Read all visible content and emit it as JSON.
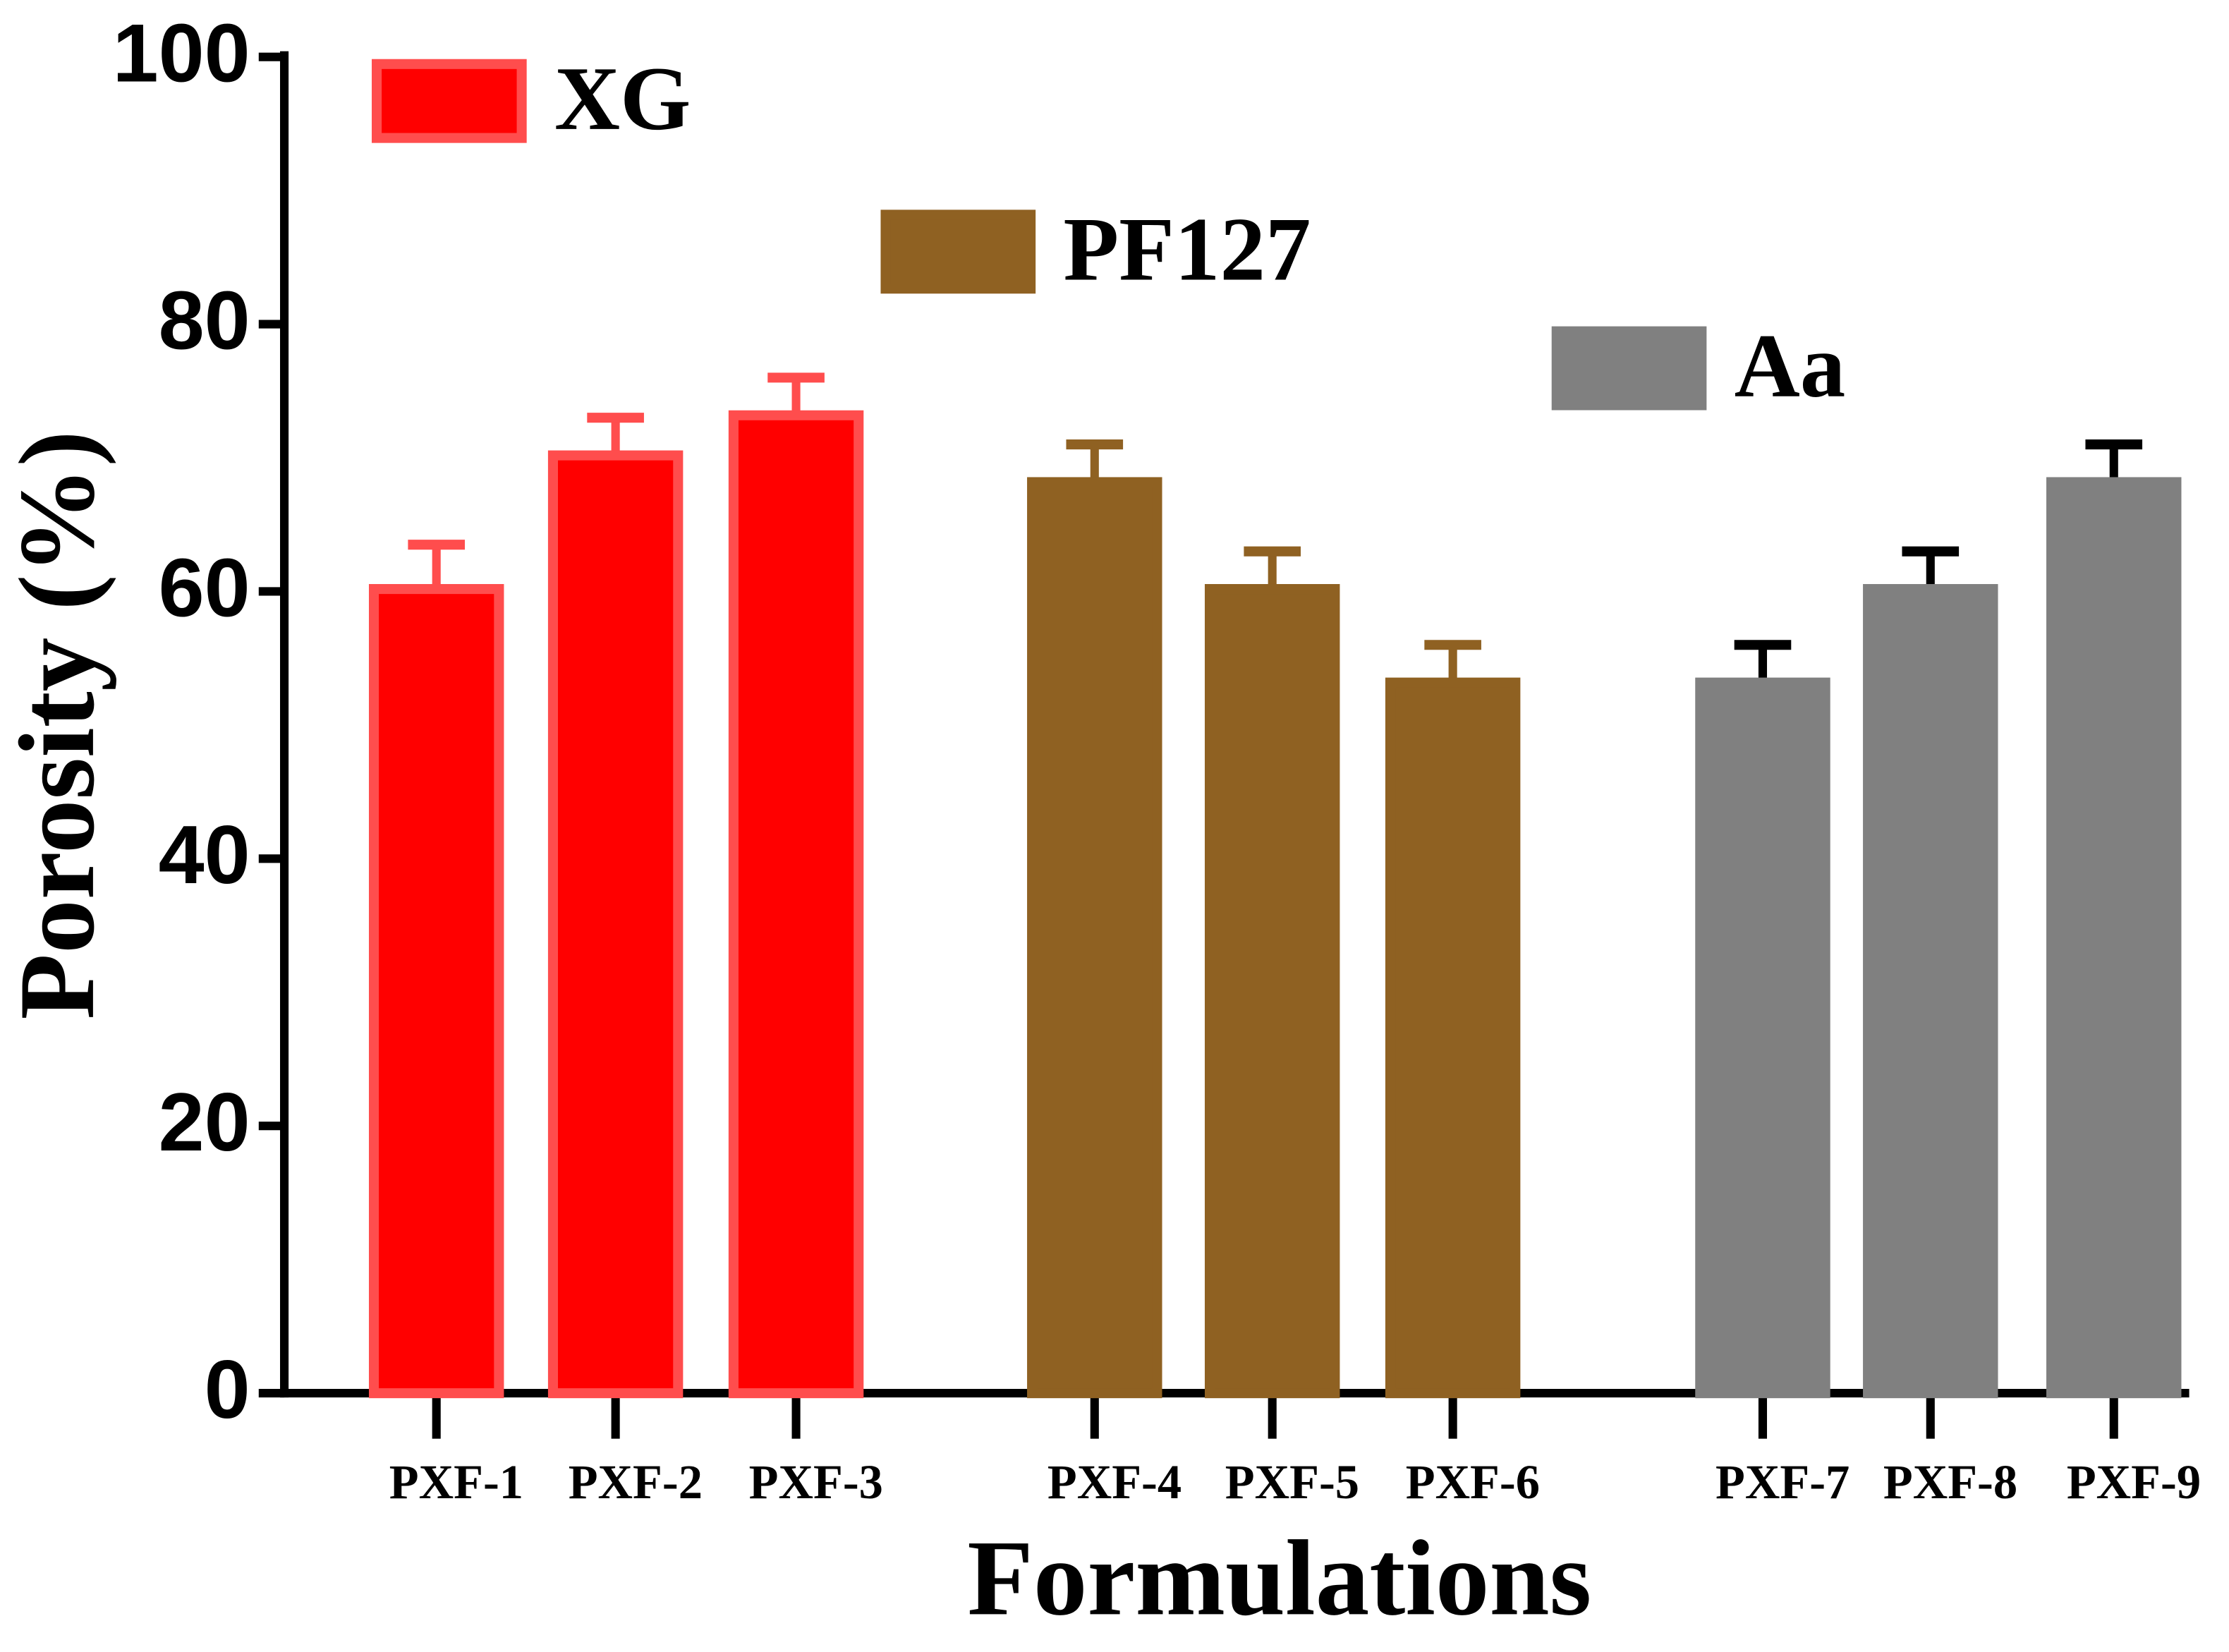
{
  "chart_data": {
    "type": "bar",
    "xlabel": "Formulations",
    "ylabel": "Porosity (%)",
    "categories": [
      "PXF-1",
      "PXF-2",
      "PXF-3",
      "PXF-4",
      "PXF-5",
      "PXF-6",
      "PXF-7",
      "PXF-8",
      "PXF-9"
    ],
    "series": [
      {
        "name": "XG",
        "color": "#ff0000",
        "edgecolor": "#ff4d4d",
        "error_color": "#ff4d4d",
        "values": [
          60.5,
          70.5,
          73.5,
          null,
          null,
          null,
          null,
          null,
          null
        ],
        "errors": [
          3,
          2.5,
          2.5,
          null,
          null,
          null,
          null,
          null,
          null
        ]
      },
      {
        "name": "PF127",
        "color": "#8f6122",
        "edgecolor": "#8f6122",
        "error_color": "#8f6122",
        "values": [
          null,
          null,
          null,
          68.5,
          60.5,
          53.5,
          null,
          null,
          null
        ],
        "errors": [
          null,
          null,
          null,
          2.5,
          2.5,
          2.5,
          null,
          null,
          null
        ]
      },
      {
        "name": "Aa",
        "color": "#808080",
        "edgecolor": "#808080",
        "error_color": "#000000",
        "values": [
          null,
          null,
          null,
          null,
          null,
          null,
          53.5,
          60.5,
          68.5
        ],
        "errors": [
          null,
          null,
          null,
          null,
          null,
          null,
          2.5,
          2.5,
          2.5
        ]
      }
    ],
    "ylim": [
      0,
      100
    ],
    "yticks": [
      0,
      20,
      40,
      60,
      80,
      100
    ],
    "grid": false
  }
}
